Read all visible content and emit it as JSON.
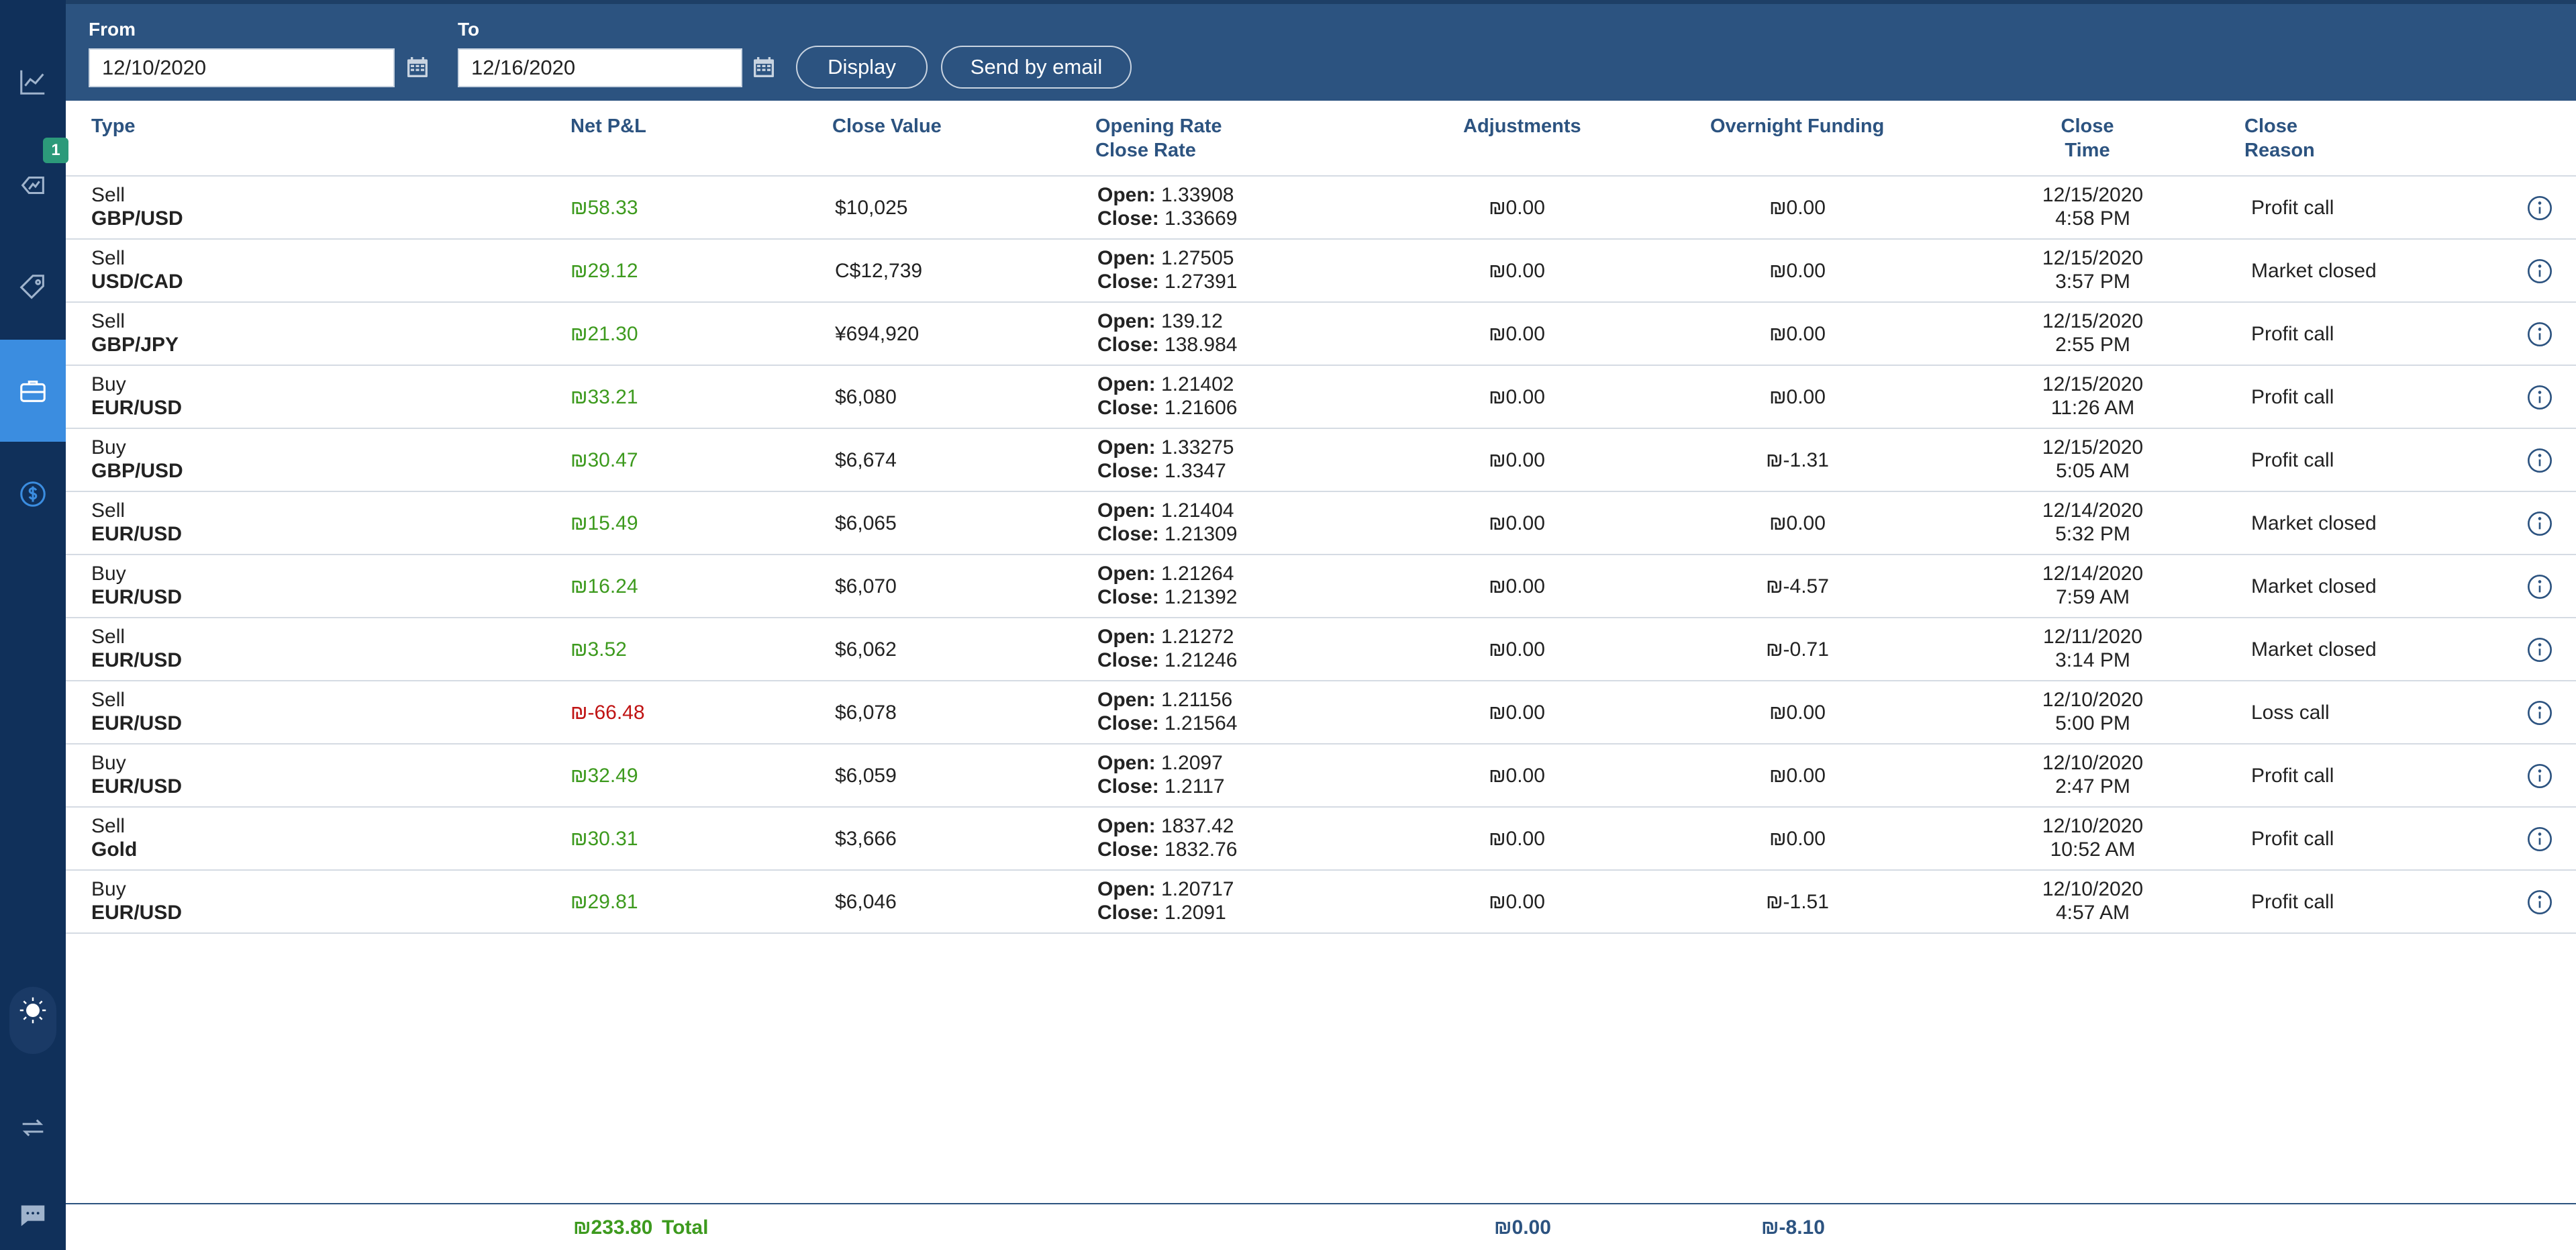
{
  "filters": {
    "from_label": "From",
    "from_value": "12/10/2020",
    "to_label": "To",
    "to_value": "12/16/2020",
    "display_label": "Display",
    "email_label": "Send by email"
  },
  "sidebar": {
    "badge": "1",
    "items": [
      {
        "icon": "line-chart-icon"
      },
      {
        "icon": "open-positions-icon"
      },
      {
        "icon": "price-tag-icon"
      },
      {
        "icon": "briefcase-icon",
        "active": true
      },
      {
        "icon": "dollar-coin-icon"
      },
      {
        "icon": "sun-icon"
      },
      {
        "icon": "swap-arrows-icon"
      },
      {
        "icon": "chat-icon"
      }
    ]
  },
  "columns": {
    "type": "Type",
    "net_pnl": "Net P&L",
    "close_value": "Close Value",
    "rates_line1": "Opening Rate",
    "rates_line2": "Close Rate",
    "adjustments": "Adjustments",
    "overnight": "Overnight Funding",
    "time_line1": "Close",
    "time_line2": "Time",
    "reason_line1": "Close",
    "reason_line2": "Reason"
  },
  "labels": {
    "open": "Open:",
    "close": "Close:"
  },
  "rows": [
    {
      "side": "Sell",
      "instrument": "GBP/USD",
      "pnl": "₪58.33",
      "pnl_sign": "pos",
      "close_value": "$10,025",
      "open": "1.33908",
      "close": "1.33669",
      "adjustments": "₪0.00",
      "overnight": "₪0.00",
      "date": "12/15/2020",
      "time": "4:58 PM",
      "reason": "Profit call"
    },
    {
      "side": "Sell",
      "instrument": "USD/CAD",
      "pnl": "₪29.12",
      "pnl_sign": "pos",
      "close_value": "C$12,739",
      "open": "1.27505",
      "close": "1.27391",
      "adjustments": "₪0.00",
      "overnight": "₪0.00",
      "date": "12/15/2020",
      "time": "3:57 PM",
      "reason": "Market closed"
    },
    {
      "side": "Sell",
      "instrument": "GBP/JPY",
      "pnl": "₪21.30",
      "pnl_sign": "pos",
      "close_value": "¥694,920",
      "open": "139.12",
      "close": "138.984",
      "adjustments": "₪0.00",
      "overnight": "₪0.00",
      "date": "12/15/2020",
      "time": "2:55 PM",
      "reason": "Profit call"
    },
    {
      "side": "Buy",
      "instrument": "EUR/USD",
      "pnl": "₪33.21",
      "pnl_sign": "pos",
      "close_value": "$6,080",
      "open": "1.21402",
      "close": "1.21606",
      "adjustments": "₪0.00",
      "overnight": "₪0.00",
      "date": "12/15/2020",
      "time": "11:26 AM",
      "reason": "Profit call"
    },
    {
      "side": "Buy",
      "instrument": "GBP/USD",
      "pnl": "₪30.47",
      "pnl_sign": "pos",
      "close_value": "$6,674",
      "open": "1.33275",
      "close": "1.3347",
      "adjustments": "₪0.00",
      "overnight": "₪-1.31",
      "date": "12/15/2020",
      "time": "5:05 AM",
      "reason": "Profit call"
    },
    {
      "side": "Sell",
      "instrument": "EUR/USD",
      "pnl": "₪15.49",
      "pnl_sign": "pos",
      "close_value": "$6,065",
      "open": "1.21404",
      "close": "1.21309",
      "adjustments": "₪0.00",
      "overnight": "₪0.00",
      "date": "12/14/2020",
      "time": "5:32 PM",
      "reason": "Market closed"
    },
    {
      "side": "Buy",
      "instrument": "EUR/USD",
      "pnl": "₪16.24",
      "pnl_sign": "pos",
      "close_value": "$6,070",
      "open": "1.21264",
      "close": "1.21392",
      "adjustments": "₪0.00",
      "overnight": "₪-4.57",
      "date": "12/14/2020",
      "time": "7:59 AM",
      "reason": "Market closed"
    },
    {
      "side": "Sell",
      "instrument": "EUR/USD",
      "pnl": "₪3.52",
      "pnl_sign": "pos",
      "close_value": "$6,062",
      "open": "1.21272",
      "close": "1.21246",
      "adjustments": "₪0.00",
      "overnight": "₪-0.71",
      "date": "12/11/2020",
      "time": "3:14 PM",
      "reason": "Market closed"
    },
    {
      "side": "Sell",
      "instrument": "EUR/USD",
      "pnl": "₪-66.48",
      "pnl_sign": "neg",
      "close_value": "$6,078",
      "open": "1.21156",
      "close": "1.21564",
      "adjustments": "₪0.00",
      "overnight": "₪0.00",
      "date": "12/10/2020",
      "time": "5:00 PM",
      "reason": "Loss call"
    },
    {
      "side": "Buy",
      "instrument": "EUR/USD",
      "pnl": "₪32.49",
      "pnl_sign": "pos",
      "close_value": "$6,059",
      "open": "1.2097",
      "close": "1.2117",
      "adjustments": "₪0.00",
      "overnight": "₪0.00",
      "date": "12/10/2020",
      "time": "2:47 PM",
      "reason": "Profit call"
    },
    {
      "side": "Sell",
      "instrument": "Gold",
      "pnl": "₪30.31",
      "pnl_sign": "pos",
      "close_value": "$3,666",
      "open": "1837.42",
      "close": "1832.76",
      "adjustments": "₪0.00",
      "overnight": "₪0.00",
      "date": "12/10/2020",
      "time": "10:52 AM",
      "reason": "Profit call"
    },
    {
      "side": "Buy",
      "instrument": "EUR/USD",
      "pnl": "₪29.81",
      "pnl_sign": "pos",
      "close_value": "$6,046",
      "open": "1.20717",
      "close": "1.2091",
      "adjustments": "₪0.00",
      "overnight": "₪-1.51",
      "date": "12/10/2020",
      "time": "4:57 AM",
      "reason": "Profit call"
    }
  ],
  "totals": {
    "pnl": "₪233.80",
    "label": "Total",
    "adjustments": "₪0.00",
    "overnight": "₪-8.10"
  },
  "colors": {
    "topbar": "#2c5380",
    "sidebar": "#10305a",
    "active": "#3b8de0",
    "positive": "#3d9a1e",
    "negative": "#c01414",
    "header_text": "#2c5380"
  }
}
